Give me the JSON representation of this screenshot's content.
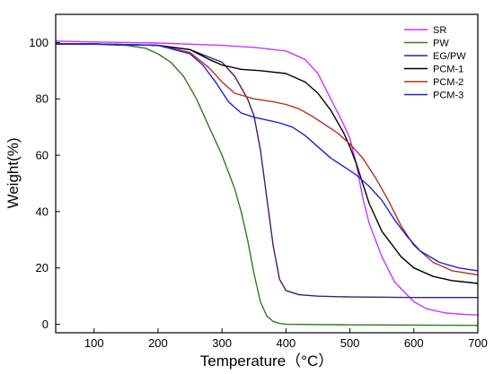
{
  "chart_data": {
    "type": "line",
    "xlabel": "Temperature（°C）",
    "ylabel": "Weight(%)",
    "xlim": [
      40,
      700
    ],
    "ylim": [
      -3,
      110
    ],
    "x_ticks": [
      100,
      200,
      300,
      400,
      500,
      600,
      700
    ],
    "y_ticks": [
      0,
      20,
      40,
      60,
      80,
      100
    ],
    "grid": false,
    "legend_position": "top-right",
    "series": [
      {
        "name": "SR",
        "color": "#cc33ff",
        "points": [
          [
            40,
            100.5
          ],
          [
            100,
            100.2
          ],
          [
            200,
            99.8
          ],
          [
            300,
            99
          ],
          [
            350,
            98.3
          ],
          [
            400,
            97
          ],
          [
            430,
            94
          ],
          [
            450,
            89
          ],
          [
            470,
            80
          ],
          [
            490,
            71
          ],
          [
            500,
            66
          ],
          [
            510,
            57
          ],
          [
            520,
            45
          ],
          [
            530,
            36
          ],
          [
            550,
            24
          ],
          [
            570,
            15
          ],
          [
            600,
            8
          ],
          [
            620,
            5.5
          ],
          [
            650,
            4
          ],
          [
            680,
            3.5
          ],
          [
            700,
            3.3
          ]
        ]
      },
      {
        "name": "PW",
        "color": "#2e7d1e",
        "points": [
          [
            40,
            99.5
          ],
          [
            100,
            99.4
          ],
          [
            150,
            99
          ],
          [
            180,
            98
          ],
          [
            200,
            96
          ],
          [
            220,
            93
          ],
          [
            240,
            88
          ],
          [
            260,
            80
          ],
          [
            280,
            70
          ],
          [
            300,
            60
          ],
          [
            320,
            48
          ],
          [
            330,
            40
          ],
          [
            340,
            30
          ],
          [
            350,
            18
          ],
          [
            360,
            8
          ],
          [
            370,
            3
          ],
          [
            380,
            1
          ],
          [
            390,
            0.3
          ],
          [
            400,
            0
          ],
          [
            500,
            -0.2
          ],
          [
            600,
            -0.3
          ],
          [
            700,
            -0.4
          ]
        ]
      },
      {
        "name": "EG/PW",
        "color": "#3d1f6e",
        "points": [
          [
            40,
            99.5
          ],
          [
            100,
            99.5
          ],
          [
            200,
            99
          ],
          [
            250,
            97.5
          ],
          [
            300,
            93
          ],
          [
            320,
            88
          ],
          [
            340,
            80
          ],
          [
            350,
            74
          ],
          [
            360,
            62
          ],
          [
            370,
            45
          ],
          [
            380,
            28
          ],
          [
            390,
            16
          ],
          [
            400,
            12
          ],
          [
            420,
            10.5
          ],
          [
            450,
            10
          ],
          [
            500,
            9.7
          ],
          [
            600,
            9.5
          ],
          [
            700,
            9.5
          ]
        ]
      },
      {
        "name": "PCM-1",
        "color": "#000000",
        "points": [
          [
            40,
            99.5
          ],
          [
            100,
            99.5
          ],
          [
            200,
            99
          ],
          [
            250,
            97.5
          ],
          [
            280,
            94
          ],
          [
            300,
            92
          ],
          [
            330,
            90.5
          ],
          [
            360,
            90
          ],
          [
            400,
            89
          ],
          [
            430,
            86
          ],
          [
            450,
            82
          ],
          [
            470,
            76
          ],
          [
            490,
            68
          ],
          [
            500,
            63
          ],
          [
            510,
            57
          ],
          [
            520,
            50
          ],
          [
            530,
            43
          ],
          [
            550,
            33
          ],
          [
            580,
            24
          ],
          [
            600,
            20
          ],
          [
            630,
            17
          ],
          [
            660,
            15.5
          ],
          [
            700,
            14.5
          ]
        ]
      },
      {
        "name": "PCM-2",
        "color": "#b3321e",
        "points": [
          [
            40,
            99.5
          ],
          [
            100,
            99.5
          ],
          [
            200,
            99
          ],
          [
            250,
            96.5
          ],
          [
            280,
            91
          ],
          [
            300,
            86
          ],
          [
            320,
            82
          ],
          [
            350,
            80
          ],
          [
            380,
            79
          ],
          [
            400,
            78
          ],
          [
            420,
            76.5
          ],
          [
            440,
            74
          ],
          [
            460,
            71
          ],
          [
            480,
            68
          ],
          [
            500,
            64
          ],
          [
            520,
            59
          ],
          [
            540,
            52
          ],
          [
            560,
            44
          ],
          [
            580,
            35
          ],
          [
            600,
            28
          ],
          [
            630,
            22
          ],
          [
            660,
            19
          ],
          [
            700,
            17.5
          ]
        ]
      },
      {
        "name": "PCM-3",
        "color": "#1a24d6",
        "points": [
          [
            40,
            99.5
          ],
          [
            100,
            99.5
          ],
          [
            200,
            99
          ],
          [
            250,
            96
          ],
          [
            270,
            92
          ],
          [
            290,
            86
          ],
          [
            310,
            79
          ],
          [
            330,
            75
          ],
          [
            350,
            73.5
          ],
          [
            370,
            72.5
          ],
          [
            390,
            71.5
          ],
          [
            410,
            70
          ],
          [
            430,
            67
          ],
          [
            450,
            63
          ],
          [
            470,
            59
          ],
          [
            490,
            56
          ],
          [
            510,
            53
          ],
          [
            530,
            49
          ],
          [
            550,
            44
          ],
          [
            570,
            37
          ],
          [
            590,
            31
          ],
          [
            610,
            26
          ],
          [
            640,
            22
          ],
          [
            670,
            20
          ],
          [
            700,
            19
          ]
        ]
      }
    ]
  }
}
